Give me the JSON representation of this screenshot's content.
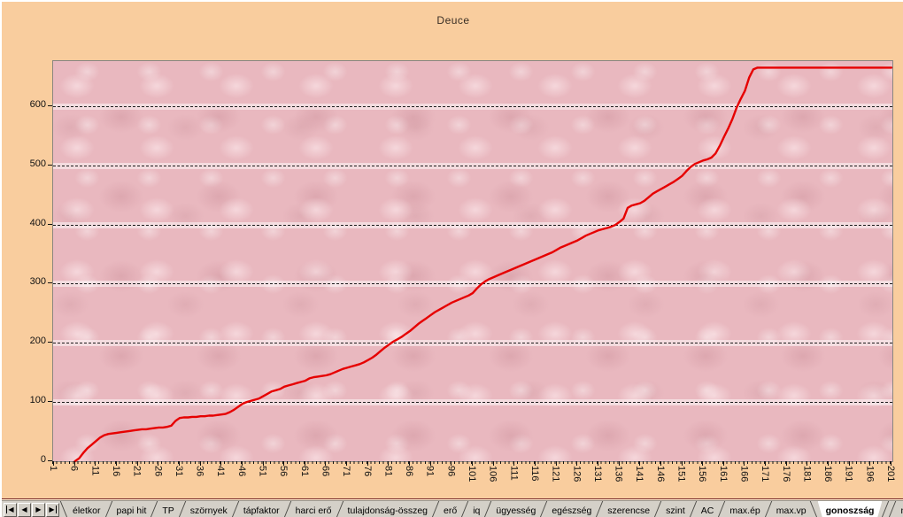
{
  "window": {
    "background": "#f9cd9e"
  },
  "chart_data": {
    "type": "line",
    "title": "Deuce",
    "xlabel": "",
    "ylabel": "",
    "x_range": [
      1,
      201
    ],
    "x_labels": [
      1,
      6,
      11,
      16,
      21,
      26,
      31,
      36,
      41,
      46,
      51,
      56,
      61,
      66,
      71,
      76,
      81,
      86,
      91,
      96,
      101,
      106,
      111,
      116,
      121,
      126,
      131,
      136,
      141,
      146,
      151,
      156,
      161,
      166,
      171,
      176,
      181,
      186,
      191,
      196,
      201
    ],
    "y_ticks": [
      0,
      100,
      200,
      300,
      400,
      500,
      600
    ],
    "ylim": [
      0,
      676
    ],
    "grid": "horizontal-dashed",
    "legend": "none",
    "plot_bg": "#e9b8bf",
    "outer_bg": "#f9cd9e",
    "series": [
      {
        "name": "Deuce",
        "color": "#e60000",
        "values": [
          null,
          null,
          null,
          null,
          null,
          0,
          5,
          14,
          22,
          28,
          34,
          40,
          44,
          46,
          47,
          48,
          49,
          50,
          51,
          52,
          53,
          54,
          54,
          55,
          56,
          57,
          57,
          58,
          60,
          68,
          73,
          74,
          74,
          75,
          75,
          76,
          76,
          77,
          77,
          78,
          79,
          80,
          83,
          87,
          92,
          97,
          100,
          102,
          104,
          106,
          110,
          114,
          118,
          120,
          122,
          126,
          128,
          130,
          132,
          134,
          136,
          140,
          142,
          143,
          144,
          145,
          147,
          150,
          153,
          156,
          158,
          160,
          162,
          164,
          167,
          171,
          175,
          180,
          186,
          192,
          197,
          202,
          206,
          210,
          215,
          220,
          226,
          232,
          237,
          242,
          247,
          252,
          256,
          260,
          264,
          268,
          271,
          274,
          277,
          280,
          284,
          292,
          299,
          304,
          308,
          311,
          314,
          317,
          320,
          323,
          326,
          329,
          332,
          335,
          338,
          341,
          344,
          347,
          350,
          353,
          357,
          361,
          364,
          367,
          370,
          373,
          377,
          381,
          384,
          387,
          390,
          392,
          394,
          396,
          399,
          404,
          410,
          428,
          432,
          434,
          436,
          440,
          446,
          452,
          456,
          460,
          464,
          468,
          472,
          477,
          482,
          490,
          497,
          502,
          505,
          508,
          510,
          513,
          520,
          533,
          548,
          562,
          578,
          597,
          612,
          626,
          648,
          662,
          665,
          665,
          665,
          665,
          665,
          665,
          665,
          665,
          665,
          665,
          665,
          665,
          665,
          665,
          665,
          665,
          665,
          665,
          665,
          665,
          665,
          665,
          665,
          665,
          665,
          665,
          665,
          665,
          665,
          665,
          665,
          665,
          665
        ]
      }
    ]
  },
  "sheet_tabs": {
    "nav": [
      {
        "name": "first-sheet",
        "glyph": "first"
      },
      {
        "name": "prev-sheet",
        "glyph": "prev"
      },
      {
        "name": "next-sheet",
        "glyph": "next"
      },
      {
        "name": "last-sheet",
        "glyph": "last"
      }
    ],
    "tabs": [
      {
        "label": "életkor",
        "selected": false
      },
      {
        "label": "papi hit",
        "selected": false
      },
      {
        "label": "TP",
        "selected": false
      },
      {
        "label": "szörnyek",
        "selected": false
      },
      {
        "label": "tápfaktor",
        "selected": false
      },
      {
        "label": "harci erő",
        "selected": false
      },
      {
        "label": "tulajdonság-összeg",
        "selected": false
      },
      {
        "label": "erő",
        "selected": false
      },
      {
        "label": "iq",
        "selected": false
      },
      {
        "label": "ügyesség",
        "selected": false
      },
      {
        "label": "egészség",
        "selected": false
      },
      {
        "label": "szerencse",
        "selected": false
      },
      {
        "label": "szint",
        "selected": false
      },
      {
        "label": "AC",
        "selected": false
      },
      {
        "label": "max.ép",
        "selected": false
      },
      {
        "label": "max.vp",
        "selected": false
      },
      {
        "label": "gonoszság",
        "selected": true
      },
      {
        "label": "max",
        "selected": false,
        "truncated": true
      }
    ]
  }
}
